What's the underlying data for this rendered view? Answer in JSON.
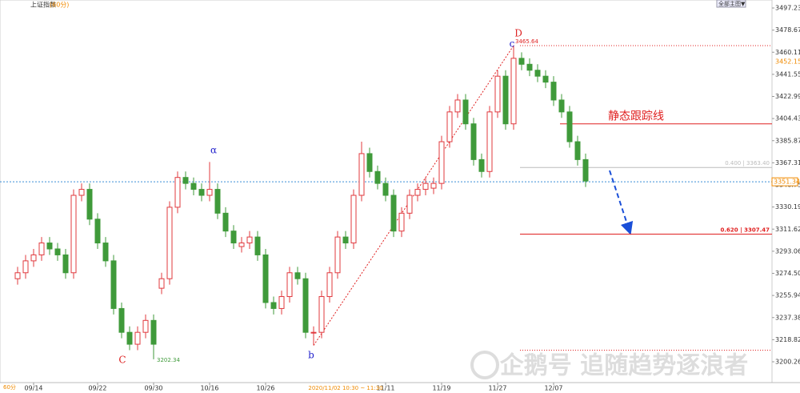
{
  "chart_data": {
    "type": "candlestick",
    "title": "上证指数",
    "subtitle": "(60分)",
    "period_label": "60分",
    "menu": "全部主图▼",
    "categories": [
      null,
      null,
      "09/14",
      null,
      null,
      null,
      null,
      null,
      null,
      null,
      "09/22",
      null,
      null,
      null,
      null,
      null,
      null,
      "09/30",
      null,
      null,
      null,
      null,
      null,
      null,
      "10/16",
      null,
      null,
      null,
      null,
      null,
      null,
      "10/26",
      null,
      null,
      null,
      null,
      null,
      null,
      null,
      null,
      null,
      null,
      null,
      null,
      null,
      null,
      "11/11",
      null,
      null,
      null,
      null,
      null,
      null,
      "11/19",
      null,
      null,
      null,
      null,
      null,
      null,
      "11/27",
      null,
      null,
      null,
      null,
      null,
      null,
      "12/07",
      null,
      null,
      null,
      null
    ],
    "open": [
      3270,
      3275,
      3285,
      3290,
      3300,
      3295,
      3290,
      3275,
      3340,
      3345,
      3320,
      3300,
      3285,
      3245,
      3225,
      3215,
      3225,
      3235,
      3262,
      3270,
      3330,
      3355,
      3350,
      3345,
      3340,
      3345,
      3325,
      3310,
      3297,
      3300,
      3305,
      3290,
      3250,
      3245,
      3255,
      3275,
      3270,
      3225,
      3225,
      3255,
      3275,
      3305,
      3300,
      3340,
      3375,
      3360,
      3350,
      3340,
      3310,
      3325,
      3340,
      3345,
      3346,
      3350,
      3385,
      3410,
      3420,
      3400,
      3370,
      3360,
      3410,
      3440,
      3400,
      3455,
      3450,
      3445,
      3440,
      3435,
      3420,
      3410,
      3385,
      3370
    ],
    "high": [
      3280,
      3290,
      3295,
      3305,
      3305,
      3300,
      3295,
      3345,
      3350,
      3350,
      3325,
      3305,
      3290,
      3250,
      3230,
      3230,
      3240,
      3240,
      3275,
      3335,
      3360,
      3360,
      3355,
      3350,
      3368,
      3350,
      3330,
      3315,
      3305,
      3310,
      3310,
      3295,
      3255,
      3260,
      3280,
      3280,
      3275,
      3230,
      3260,
      3280,
      3310,
      3310,
      3345,
      3385,
      3380,
      3365,
      3355,
      3345,
      3330,
      3345,
      3350,
      3355,
      3355,
      3390,
      3415,
      3425,
      3425,
      3405,
      3375,
      3415,
      3445,
      3445,
      3465.64,
      3460,
      3455,
      3450,
      3445,
      3440,
      3425,
      3415,
      3390,
      3375
    ],
    "low": [
      3265,
      3270,
      3280,
      3285,
      3290,
      3285,
      3270,
      3270,
      3335,
      3315,
      3295,
      3280,
      3240,
      3220,
      3210,
      3210,
      3220,
      3202.34,
      3257,
      3265,
      3325,
      3345,
      3340,
      3335,
      3335,
      3320,
      3305,
      3295,
      3292,
      3295,
      3285,
      3245,
      3240,
      3240,
      3250,
      3265,
      3220,
      3214,
      3220,
      3250,
      3270,
      3295,
      3295,
      3335,
      3355,
      3345,
      3335,
      3305,
      3305,
      3320,
      3335,
      3340,
      3341,
      3345,
      3380,
      3405,
      3395,
      3365,
      3355,
      3355,
      3405,
      3395,
      3395,
      3445,
      3440,
      3435,
      3430,
      3415,
      3405,
      3380,
      3365,
      3347
    ],
    "close": [
      3275,
      3285,
      3290,
      3300,
      3295,
      3290,
      3275,
      3340,
      3345,
      3320,
      3300,
      3285,
      3245,
      3225,
      3215,
      3225,
      3235,
      3215,
      3270,
      3330,
      3355,
      3350,
      3345,
      3340,
      3345,
      3325,
      3310,
      3300,
      3300,
      3305,
      3290,
      3250,
      3245,
      3255,
      3275,
      3270,
      3225,
      3225,
      3255,
      3275,
      3305,
      3300,
      3340,
      3375,
      3360,
      3350,
      3340,
      3310,
      3325,
      3340,
      3345,
      3350,
      3350,
      3385,
      3410,
      3420,
      3400,
      3370,
      3360,
      3410,
      3440,
      3400,
      3455,
      3450,
      3445,
      3440,
      3435,
      3420,
      3410,
      3385,
      3370,
      3352
    ],
    "up_color": "#e0393e",
    "down_color": "#3f9a3a",
    "ylim": [
      3182.8,
      3503.95
    ],
    "yticks": [
      3497.23,
      3478.67,
      3460.11,
      3441.55,
      3422.99,
      3404.43,
      3385.87,
      3367.31,
      3348.75,
      3330.19,
      3311.62,
      3293.06,
      {
        "value": 3274.5,
        "label": "3274.50"
      },
      3255.94,
      3237.38,
      3218.82,
      3200.26
    ],
    "wave_labels": [
      {
        "text": "C",
        "color": "#d22"
      },
      {
        "text": "α",
        "color": "#22c"
      },
      {
        "text": "b",
        "color": "#22c"
      },
      {
        "text": "D",
        "color": "#d22"
      },
      {
        "text": "c",
        "color": "#22c"
      }
    ],
    "high_label": 3465.64,
    "low_label": 3202.34,
    "ma_label": 3452.15,
    "last_price": 3351.34,
    "tracking_line": {
      "label": "静态跟踪线",
      "value": 3400
    },
    "fib_levels": [
      {
        "label": "0.400 | 3363.40",
        "value": 3363.4,
        "color": "#bbb"
      },
      {
        "label": "0.620 | 3307.47",
        "value": 3307.47,
        "color": "#e02020"
      }
    ],
    "support_line": 3210,
    "cursor_time": "2020/11/02 10:30 ~ 11:30",
    "watermark": "企鹅号 追随趋势逐浪者"
  }
}
